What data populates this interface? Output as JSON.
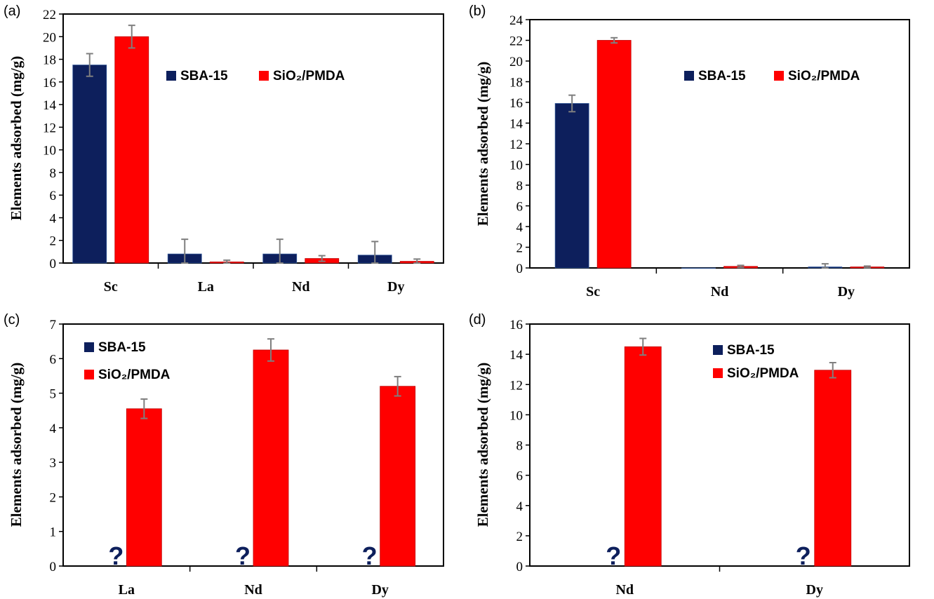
{
  "colors": {
    "sba": "#0d1f5c",
    "pmda": "#ff0000",
    "error": "#7f7f7f",
    "axis": "#000000"
  },
  "chart_data": [
    {
      "panel_label": "(a)",
      "type": "bar",
      "categories": [
        "Sc",
        "La",
        "Nd",
        "Dy"
      ],
      "series": [
        {
          "name": "SBA-15",
          "values": [
            17.5,
            0.8,
            0.8,
            0.7
          ],
          "errors": [
            1.0,
            1.3,
            1.3,
            1.2
          ],
          "missing": []
        },
        {
          "name": "SiO₂/PMDA",
          "values": [
            20.0,
            0.1,
            0.4,
            0.15
          ],
          "errors": [
            1.0,
            0.15,
            0.25,
            0.2
          ],
          "missing": []
        }
      ],
      "ylabel": "Elements adsorbed (mg/g)",
      "ylim": [
        0,
        22
      ],
      "yticks": [
        "0",
        "2",
        "4",
        "6",
        "8",
        "10",
        "12",
        "14",
        "16",
        "18",
        "20",
        "22"
      ],
      "legend": "inline, upper-right",
      "grid": false
    },
    {
      "panel_label": "(b)",
      "type": "bar",
      "categories": [
        "Sc",
        "Nd",
        "Dy"
      ],
      "series": [
        {
          "name": "SBA-15",
          "values": [
            15.9,
            0.0,
            0.1
          ],
          "errors": [
            0.8,
            0.0,
            0.3
          ],
          "missing": []
        },
        {
          "name": "SiO₂/PMDA",
          "values": [
            22.0,
            0.15,
            0.1
          ],
          "errors": [
            0.25,
            0.1,
            0.08
          ],
          "missing": []
        }
      ],
      "ylabel": "Elements adsorbed (mg/g)",
      "ylim": [
        0,
        24
      ],
      "yticks": [
        "0",
        "2",
        "4",
        "6",
        "8",
        "10",
        "12",
        "14",
        "16",
        "18",
        "20",
        "22",
        "24"
      ],
      "legend": "inline, upper-right",
      "grid": false
    },
    {
      "panel_label": "(c)",
      "type": "bar",
      "categories": [
        "La",
        "Nd",
        "Dy"
      ],
      "series": [
        {
          "name": "SBA-15",
          "values": [
            null,
            null,
            null
          ],
          "errors": [
            0,
            0,
            0
          ],
          "missing": [
            "?",
            "?",
            "?"
          ]
        },
        {
          "name": "SiO₂/PMDA",
          "values": [
            4.55,
            6.25,
            5.2
          ],
          "errors": [
            0.28,
            0.32,
            0.28
          ],
          "missing": []
        }
      ],
      "ylabel": "Elements adsorbed (mg/g)",
      "ylim": [
        0,
        7
      ],
      "yticks": [
        "0",
        "1",
        "2",
        "3",
        "4",
        "5",
        "6",
        "7"
      ],
      "legend": "stacked, upper-left",
      "grid": false
    },
    {
      "panel_label": "(d)",
      "type": "bar",
      "categories": [
        "Nd",
        "Dy"
      ],
      "series": [
        {
          "name": "SBA-15",
          "values": [
            null,
            null
          ],
          "errors": [
            0,
            0
          ],
          "missing": [
            "?",
            "?"
          ]
        },
        {
          "name": "SiO₂/PMDA",
          "values": [
            14.5,
            12.95
          ],
          "errors": [
            0.55,
            0.5
          ],
          "missing": []
        }
      ],
      "ylabel": "Elements adsorbed (mg/g)",
      "ylim": [
        0,
        16
      ],
      "yticks": [
        "0",
        "2",
        "4",
        "6",
        "8",
        "10",
        "12",
        "14",
        "16"
      ],
      "legend": "stacked, upper-center",
      "grid": false
    }
  ]
}
